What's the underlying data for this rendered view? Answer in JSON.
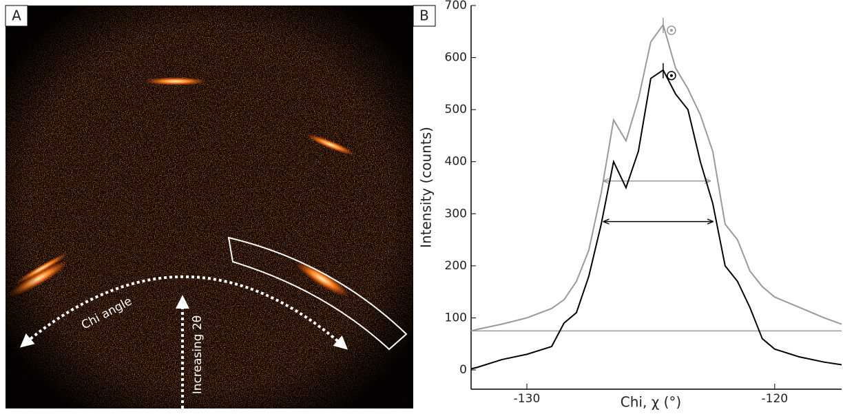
{
  "panel_a": {
    "label": "A",
    "annotations": [
      "Chi angle",
      "Increasing 2θ"
    ]
  },
  "chart_data": {
    "type": "line",
    "label": "B",
    "x_label": "Chi, χ (°)",
    "y_label": "Intensity (counts)",
    "x": [
      -132.25,
      -132,
      -131,
      -130,
      -129,
      -128.5,
      -128,
      -127.5,
      -127,
      -126.5,
      -126,
      -125.5,
      -125,
      -124.5,
      -124,
      -123.5,
      -123,
      -122.5,
      -122,
      -121.5,
      -121,
      -120.5,
      -120,
      -119,
      -118,
      -117.3
    ],
    "series": [
      {
        "color": "#999999",
        "values": [
          75,
          78,
          88,
          100,
          118,
          135,
          170,
          230,
          340,
          480,
          440,
          520,
          630,
          663,
          580,
          540,
          490,
          420,
          280,
          250,
          190,
          160,
          140,
          120,
          100,
          88
        ],
        "peak": {
          "x": -124.5,
          "y": 663
        },
        "half_max": {
          "x": [
            -126.9,
            -122.6
          ],
          "y": 363
        }
      },
      {
        "color": "#000000",
        "values": [
          2,
          5,
          20,
          30,
          45,
          90,
          110,
          180,
          280,
          400,
          350,
          420,
          560,
          576,
          530,
          500,
          400,
          320,
          200,
          170,
          120,
          60,
          40,
          25,
          15,
          10
        ],
        "peak": {
          "x": -124.5,
          "y": 576
        },
        "half_max": {
          "x": [
            -126.9,
            -122.5
          ],
          "y": 285
        }
      }
    ],
    "baseline": 75,
    "xlim": [
      -132.25,
      -117.3
    ],
    "ylim": [
      -37,
      700
    ],
    "xticks": [
      -130,
      -120
    ],
    "yticks": [
      0,
      100,
      200,
      300,
      400,
      500,
      600,
      700
    ]
  }
}
